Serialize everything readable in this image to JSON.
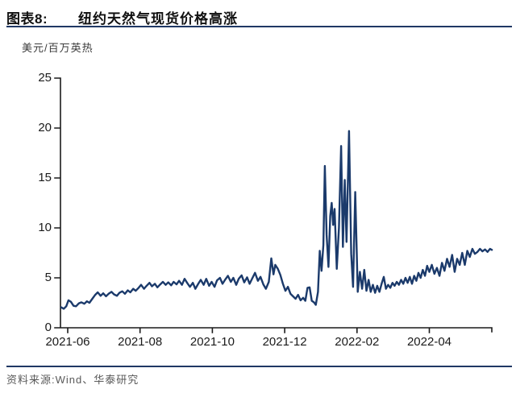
{
  "header": {
    "figure_label": "图表8:",
    "title": "纽约天然气现货价格高涨"
  },
  "chart": {
    "unit_label": "美元/百万英热"
  },
  "footer": {
    "source_label": "资料来源:",
    "source_value": "Wind、华泰研究"
  },
  "colors": {
    "accent_rule": "#1F3864",
    "series_line": "#1B3A6B",
    "axis": "#1a1a1a"
  },
  "chart_data": {
    "type": "line",
    "title": "纽约天然气现货价格高涨",
    "ylabel": "美元/百万英热",
    "ylim": [
      0,
      25
    ],
    "y_ticks": [
      0,
      5,
      10,
      15,
      20,
      25
    ],
    "x_ticks": [
      {
        "t": 0,
        "label": "2021-06"
      },
      {
        "t": 2,
        "label": "2021-08"
      },
      {
        "t": 4,
        "label": "2021-10"
      },
      {
        "t": 6,
        "label": "2021-12"
      },
      {
        "t": 8,
        "label": "2022-02"
      },
      {
        "t": 10,
        "label": "2022-04"
      }
    ],
    "x_unit": "months since 2021-06-01",
    "grid": false,
    "legend": "none",
    "series": [
      {
        "name": "纽约天然气现货价格高涨",
        "points": [
          [
            -0.18,
            2.05
          ],
          [
            -0.11,
            1.9
          ],
          [
            -0.04,
            2.15
          ],
          [
            0.02,
            2.75
          ],
          [
            0.09,
            2.6
          ],
          [
            0.16,
            2.2
          ],
          [
            0.23,
            2.15
          ],
          [
            0.31,
            2.45
          ],
          [
            0.38,
            2.55
          ],
          [
            0.46,
            2.4
          ],
          [
            0.53,
            2.65
          ],
          [
            0.6,
            2.5
          ],
          [
            0.68,
            2.9
          ],
          [
            0.76,
            3.3
          ],
          [
            0.83,
            3.55
          ],
          [
            0.91,
            3.2
          ],
          [
            0.98,
            3.45
          ],
          [
            1.06,
            3.15
          ],
          [
            1.13,
            3.4
          ],
          [
            1.21,
            3.6
          ],
          [
            1.28,
            3.35
          ],
          [
            1.36,
            3.2
          ],
          [
            1.43,
            3.5
          ],
          [
            1.51,
            3.65
          ],
          [
            1.58,
            3.4
          ],
          [
            1.66,
            3.75
          ],
          [
            1.73,
            3.55
          ],
          [
            1.81,
            3.9
          ],
          [
            1.88,
            3.7
          ],
          [
            1.96,
            4.0
          ],
          [
            2.03,
            4.3
          ],
          [
            2.11,
            3.9
          ],
          [
            2.18,
            4.2
          ],
          [
            2.26,
            4.5
          ],
          [
            2.33,
            4.15
          ],
          [
            2.41,
            4.4
          ],
          [
            2.48,
            4.05
          ],
          [
            2.56,
            4.35
          ],
          [
            2.63,
            4.6
          ],
          [
            2.71,
            4.3
          ],
          [
            2.78,
            4.55
          ],
          [
            2.86,
            4.25
          ],
          [
            2.93,
            4.6
          ],
          [
            3.01,
            4.35
          ],
          [
            3.08,
            4.7
          ],
          [
            3.16,
            4.3
          ],
          [
            3.23,
            4.9
          ],
          [
            3.31,
            4.45
          ],
          [
            3.38,
            4.1
          ],
          [
            3.46,
            4.5
          ],
          [
            3.53,
            3.9
          ],
          [
            3.61,
            4.4
          ],
          [
            3.68,
            4.8
          ],
          [
            3.76,
            4.3
          ],
          [
            3.83,
            4.9
          ],
          [
            3.91,
            4.2
          ],
          [
            3.98,
            4.6
          ],
          [
            4.06,
            4.1
          ],
          [
            4.13,
            4.75
          ],
          [
            4.21,
            5.0
          ],
          [
            4.28,
            4.4
          ],
          [
            4.36,
            4.85
          ],
          [
            4.43,
            5.2
          ],
          [
            4.51,
            4.6
          ],
          [
            4.58,
            5.0
          ],
          [
            4.66,
            4.3
          ],
          [
            4.73,
            4.9
          ],
          [
            4.81,
            5.25
          ],
          [
            4.88,
            4.55
          ],
          [
            4.96,
            5.05
          ],
          [
            5.03,
            4.4
          ],
          [
            5.11,
            5.0
          ],
          [
            5.18,
            5.5
          ],
          [
            5.26,
            4.7
          ],
          [
            5.33,
            5.1
          ],
          [
            5.41,
            4.35
          ],
          [
            5.48,
            3.9
          ],
          [
            5.56,
            4.6
          ],
          [
            5.63,
            6.95
          ],
          [
            5.69,
            5.35
          ],
          [
            5.74,
            6.3
          ],
          [
            5.81,
            5.9
          ],
          [
            5.88,
            5.3
          ],
          [
            5.95,
            4.4
          ],
          [
            6.02,
            3.7
          ],
          [
            6.09,
            4.1
          ],
          [
            6.16,
            3.4
          ],
          [
            6.23,
            3.15
          ],
          [
            6.3,
            2.9
          ],
          [
            6.37,
            3.3
          ],
          [
            6.44,
            2.75
          ],
          [
            6.51,
            3.0
          ],
          [
            6.57,
            2.7
          ],
          [
            6.63,
            4.0
          ],
          [
            6.69,
            4.05
          ],
          [
            6.75,
            2.7
          ],
          [
            6.81,
            2.55
          ],
          [
            6.86,
            2.3
          ],
          [
            6.92,
            3.6
          ],
          [
            6.97,
            7.7
          ],
          [
            7.02,
            5.7
          ],
          [
            7.07,
            8.3
          ],
          [
            7.11,
            16.2
          ],
          [
            7.16,
            9.3
          ],
          [
            7.21,
            6.1
          ],
          [
            7.26,
            11.2
          ],
          [
            7.3,
            12.5
          ],
          [
            7.34,
            10.3
          ],
          [
            7.38,
            11.9
          ],
          [
            7.44,
            5.9
          ],
          [
            7.5,
            10.0
          ],
          [
            7.56,
            18.2
          ],
          [
            7.61,
            8.1
          ],
          [
            7.66,
            14.8
          ],
          [
            7.71,
            8.6
          ],
          [
            7.78,
            19.7
          ],
          [
            7.84,
            7.4
          ],
          [
            7.89,
            4.1
          ],
          [
            7.95,
            13.6
          ],
          [
            8.02,
            3.6
          ],
          [
            8.08,
            5.6
          ],
          [
            8.14,
            3.9
          ],
          [
            8.2,
            5.8
          ],
          [
            8.26,
            3.7
          ],
          [
            8.32,
            4.8
          ],
          [
            8.38,
            3.6
          ],
          [
            8.44,
            4.3
          ],
          [
            8.5,
            3.5
          ],
          [
            8.56,
            4.2
          ],
          [
            8.62,
            3.6
          ],
          [
            8.68,
            4.4
          ],
          [
            8.74,
            5.1
          ],
          [
            8.8,
            3.9
          ],
          [
            8.86,
            4.3
          ],
          [
            8.92,
            4.0
          ],
          [
            8.98,
            4.5
          ],
          [
            9.04,
            4.2
          ],
          [
            9.1,
            4.6
          ],
          [
            9.16,
            4.3
          ],
          [
            9.22,
            4.8
          ],
          [
            9.28,
            4.4
          ],
          [
            9.34,
            5.0
          ],
          [
            9.4,
            4.5
          ],
          [
            9.46,
            5.1
          ],
          [
            9.52,
            4.4
          ],
          [
            9.58,
            5.2
          ],
          [
            9.64,
            4.7
          ],
          [
            9.7,
            5.5
          ],
          [
            9.76,
            5.0
          ],
          [
            9.82,
            5.8
          ],
          [
            9.88,
            5.2
          ],
          [
            9.94,
            6.2
          ],
          [
            10.0,
            5.6
          ],
          [
            10.07,
            6.3
          ],
          [
            10.14,
            5.4
          ],
          [
            10.21,
            6.0
          ],
          [
            10.28,
            5.2
          ],
          [
            10.35,
            6.5
          ],
          [
            10.42,
            5.7
          ],
          [
            10.49,
            6.9
          ],
          [
            10.56,
            6.1
          ],
          [
            10.63,
            7.3
          ],
          [
            10.7,
            5.6
          ],
          [
            10.77,
            6.9
          ],
          [
            10.84,
            6.3
          ],
          [
            10.91,
            7.5
          ],
          [
            10.98,
            6.3
          ],
          [
            11.05,
            7.7
          ],
          [
            11.12,
            7.1
          ],
          [
            11.19,
            7.9
          ],
          [
            11.26,
            7.4
          ],
          [
            11.33,
            7.6
          ],
          [
            11.4,
            7.9
          ],
          [
            11.47,
            7.65
          ],
          [
            11.54,
            7.85
          ],
          [
            11.61,
            7.6
          ],
          [
            11.68,
            7.9
          ],
          [
            11.73,
            7.8
          ]
        ]
      }
    ]
  }
}
